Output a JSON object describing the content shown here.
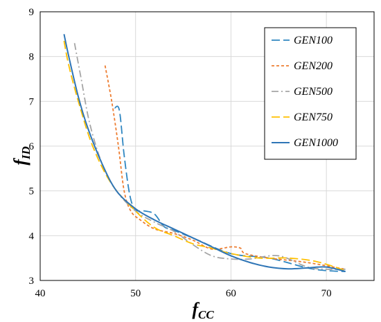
{
  "chart_data": {
    "type": "line",
    "xlabel": {
      "main": "f",
      "sub": "CC"
    },
    "ylabel": {
      "main": "f",
      "sub": "ID"
    },
    "xlim": [
      40,
      75
    ],
    "ylim": [
      3,
      9
    ],
    "x_ticks": [
      40,
      50,
      60,
      70
    ],
    "y_ticks": [
      3,
      4,
      5,
      6,
      7,
      8,
      9
    ],
    "grid": true,
    "legend_position": "top-right",
    "series": [
      {
        "name": "GEN100",
        "color": "#2e86c1",
        "dash": "long-dash",
        "points": [
          [
            47.8,
            6.85
          ],
          [
            48.3,
            6.8
          ],
          [
            48.8,
            5.8
          ],
          [
            49.4,
            4.9
          ],
          [
            50.0,
            4.58
          ],
          [
            51.0,
            4.55
          ],
          [
            52.0,
            4.48
          ],
          [
            53.0,
            4.2
          ],
          [
            54.0,
            4.12
          ],
          [
            56.0,
            3.95
          ],
          [
            60.0,
            3.6
          ],
          [
            64.0,
            3.5
          ],
          [
            68.0,
            3.28
          ],
          [
            70.0,
            3.22
          ],
          [
            72.0,
            3.2
          ]
        ]
      },
      {
        "name": "GEN200",
        "color": "#ed7d31",
        "dash": "short-dash",
        "points": [
          [
            46.8,
            7.8
          ],
          [
            47.5,
            7.0
          ],
          [
            48.2,
            6.0
          ],
          [
            48.8,
            5.0
          ],
          [
            49.5,
            4.55
          ],
          [
            50.5,
            4.35
          ],
          [
            52.0,
            4.15
          ],
          [
            54.0,
            4.05
          ],
          [
            56.0,
            3.9
          ],
          [
            58.0,
            3.7
          ],
          [
            60.0,
            3.75
          ],
          [
            61.0,
            3.72
          ],
          [
            61.5,
            3.6
          ],
          [
            64.0,
            3.5
          ],
          [
            68.0,
            3.4
          ],
          [
            72.0,
            3.25
          ]
        ]
      },
      {
        "name": "GEN500",
        "color": "#a5a5a5",
        "dash": "dash-dot",
        "points": [
          [
            43.6,
            8.3
          ],
          [
            44.3,
            7.5
          ],
          [
            45.2,
            6.5
          ],
          [
            46.5,
            5.6
          ],
          [
            48.0,
            5.0
          ],
          [
            50.0,
            4.55
          ],
          [
            52.0,
            4.3
          ],
          [
            54.0,
            4.1
          ],
          [
            56.0,
            3.8
          ],
          [
            58.0,
            3.55
          ],
          [
            60.0,
            3.48
          ],
          [
            62.0,
            3.48
          ],
          [
            65.0,
            3.55
          ],
          [
            68.0,
            3.3
          ],
          [
            70.0,
            3.25
          ],
          [
            72.0,
            3.25
          ]
        ]
      },
      {
        "name": "GEN750",
        "color": "#ffc000",
        "dash": "long-dash",
        "points": [
          [
            42.5,
            8.35
          ],
          [
            43.0,
            7.8
          ],
          [
            44.0,
            7.0
          ],
          [
            45.5,
            6.0
          ],
          [
            47.5,
            5.15
          ],
          [
            50.0,
            4.55
          ],
          [
            52.0,
            4.18
          ],
          [
            54.0,
            4.0
          ],
          [
            56.0,
            3.82
          ],
          [
            58.0,
            3.72
          ],
          [
            60.0,
            3.6
          ],
          [
            63.0,
            3.5
          ],
          [
            66.0,
            3.5
          ],
          [
            69.0,
            3.42
          ],
          [
            72.0,
            3.22
          ]
        ]
      },
      {
        "name": "GEN1000",
        "color": "#2e75b6",
        "dash": "solid",
        "points": [
          [
            42.5,
            8.5
          ],
          [
            43.0,
            8.0
          ],
          [
            44.0,
            7.1
          ],
          [
            45.0,
            6.4
          ],
          [
            46.5,
            5.6
          ],
          [
            48.0,
            5.0
          ],
          [
            50.0,
            4.6
          ],
          [
            52.0,
            4.35
          ],
          [
            54.0,
            4.15
          ],
          [
            56.0,
            3.95
          ],
          [
            58.0,
            3.75
          ],
          [
            60.0,
            3.55
          ],
          [
            62.0,
            3.4
          ],
          [
            64.0,
            3.3
          ],
          [
            66.0,
            3.26
          ],
          [
            68.0,
            3.28
          ],
          [
            70.0,
            3.3
          ],
          [
            72.0,
            3.2
          ]
        ]
      }
    ]
  }
}
